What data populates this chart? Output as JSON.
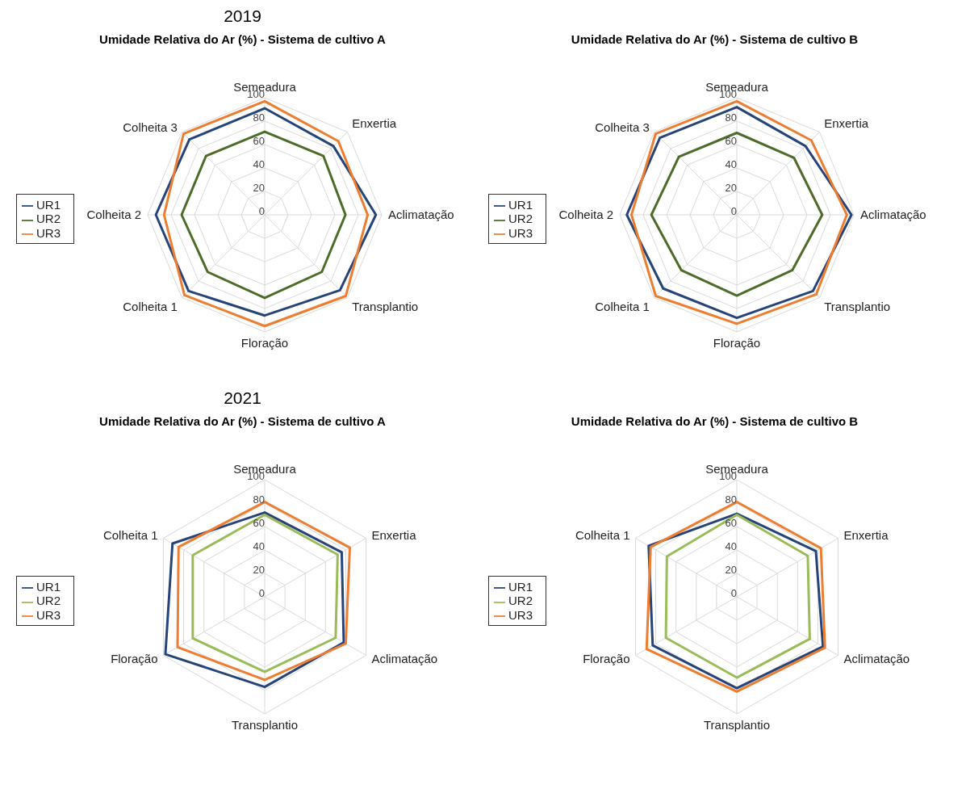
{
  "chart_data": [
    {
      "type": "radar",
      "annotations": [
        "2019"
      ],
      "title": "Umidade Relativa do Ar (%) - Sistema de cultivo A",
      "categories": [
        "Semeadura",
        "Enxertia",
        "Aclimatação",
        "Transplantio",
        "Floração",
        "Colheita 1",
        "Colheita 2",
        "Colheita 3"
      ],
      "series": [
        {
          "name": "UR1",
          "color": "#264478",
          "values": [
            91,
            83,
            95,
            91,
            86,
            92,
            93,
            91
          ]
        },
        {
          "name": "UR2",
          "color": "#4e6b2a",
          "values": [
            71,
            71,
            69,
            69,
            71,
            69,
            71,
            71
          ]
        },
        {
          "name": "UR3",
          "color": "#ed7d31",
          "values": [
            97,
            89,
            88,
            98,
            95,
            97,
            86,
            98
          ]
        }
      ],
      "ylim": [
        0,
        100
      ],
      "yticks": [
        0,
        20,
        40,
        60,
        80,
        100
      ],
      "grid": true,
      "legend": "left"
    },
    {
      "type": "radar",
      "title": "Umidade Relativa do Ar (%) - Sistema de cultivo B",
      "categories": [
        "Semeadura",
        "Enxertia",
        "Aclimatação",
        "Transplantio",
        "Floração",
        "Colheita 1",
        "Colheita 2",
        "Colheita 3"
      ],
      "series": [
        {
          "name": "UR1",
          "color": "#264478",
          "values": [
            92,
            83,
            98,
            92,
            88,
            89,
            94,
            93
          ]
        },
        {
          "name": "UR2",
          "color": "#4e6b2a",
          "values": [
            70,
            69,
            73,
            67,
            69,
            67,
            73,
            70
          ]
        },
        {
          "name": "UR3",
          "color": "#ed7d31",
          "values": [
            97,
            90,
            94,
            96,
            93,
            98,
            90,
            98
          ]
        }
      ],
      "ylim": [
        0,
        100
      ],
      "yticks": [
        0,
        20,
        40,
        60,
        80,
        100
      ],
      "grid": true,
      "legend": "left"
    },
    {
      "type": "radar",
      "annotations": [
        "2021"
      ],
      "title": "Umidade Relativa do Ar (%) - Sistema de cultivo A",
      "categories": [
        "Semeadura",
        "Enxertia",
        "Aclimatação",
        "Transplantio",
        "Floração",
        "Colheita 1"
      ],
      "series": [
        {
          "name": "UR1",
          "color": "#264478",
          "values": [
            72,
            76,
            78,
            77,
            98,
            91
          ]
        },
        {
          "name": "UR2",
          "color": "#9bbb59",
          "values": [
            70,
            72,
            70,
            64,
            71,
            71
          ]
        },
        {
          "name": "UR3",
          "color": "#ed7d31",
          "values": [
            81,
            84,
            80,
            71,
            86,
            85
          ]
        }
      ],
      "ylim": [
        0,
        100
      ],
      "yticks": [
        0,
        20,
        40,
        60,
        80,
        100
      ],
      "grid": true,
      "legend": "left"
    },
    {
      "type": "radar",
      "title": "Umidade Relativa do Ar (%) - Sistema de cultivo B",
      "categories": [
        "Semeadura",
        "Enxertia",
        "Aclimatação",
        "Transplantio",
        "Floração",
        "Colheita 1"
      ],
      "series": [
        {
          "name": "UR1",
          "color": "#264478",
          "values": [
            71,
            78,
            85,
            78,
            83,
            87
          ]
        },
        {
          "name": "UR2",
          "color": "#9bbb59",
          "values": [
            70,
            70,
            72,
            69,
            70,
            69
          ]
        },
        {
          "name": "UR3",
          "color": "#ed7d31",
          "values": [
            81,
            83,
            87,
            81,
            89,
            85
          ]
        }
      ],
      "ylim": [
        0,
        100
      ],
      "yticks": [
        0,
        20,
        40,
        60,
        80,
        100
      ],
      "grid": true,
      "legend": "left"
    }
  ]
}
